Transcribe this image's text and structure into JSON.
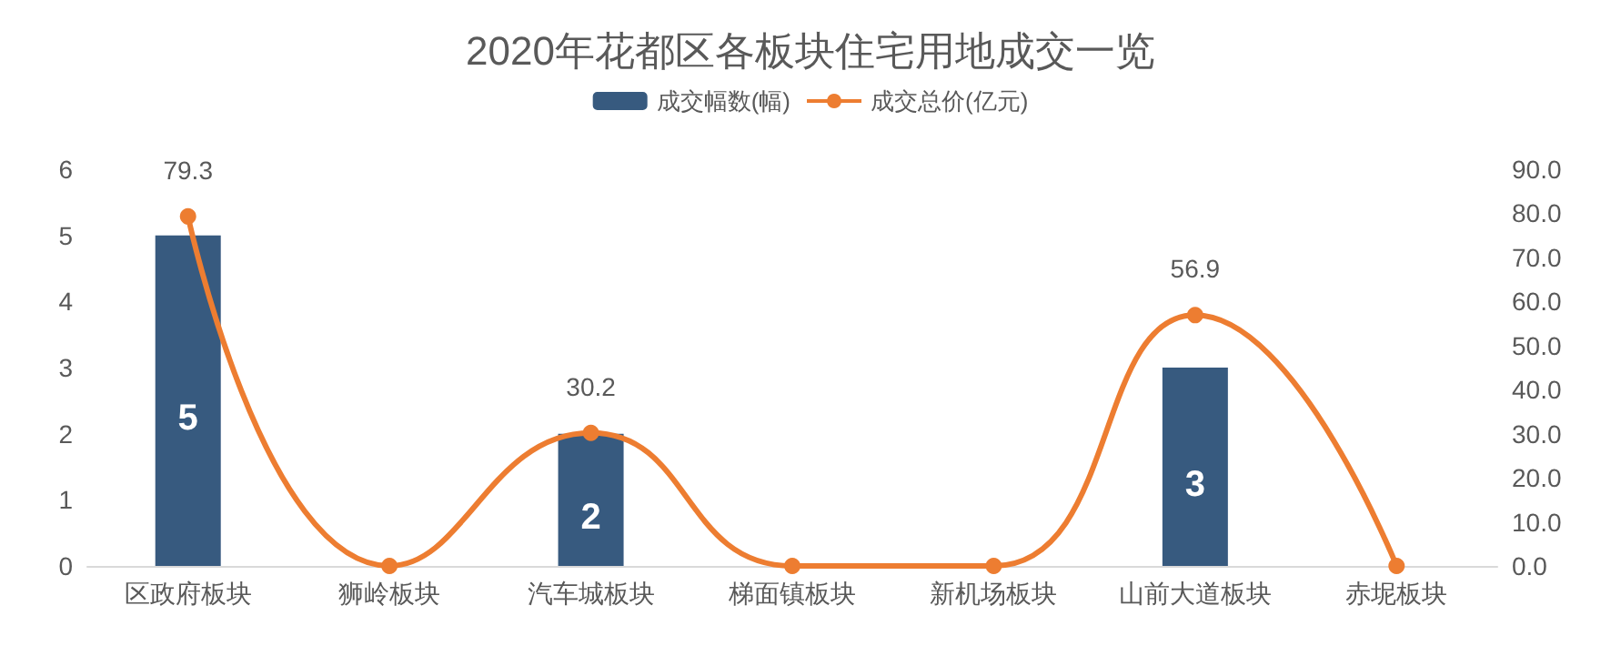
{
  "chart_data": {
    "type": "bar",
    "title": "2020年花都区各板块住宅用地成交一览",
    "categories": [
      "区政府板块",
      "狮岭板块",
      "汽车城板块",
      "梯面镇板块",
      "新机场板块",
      "山前大道板块",
      "赤坭板块"
    ],
    "series": [
      {
        "name": "成交幅数(幅)",
        "color": "#375a7f",
        "values": [
          5,
          0,
          2,
          0,
          0,
          3,
          0
        ],
        "value_labels": [
          "5",
          null,
          "2",
          null,
          null,
          "3",
          null
        ]
      },
      {
        "name": "成交总价(亿元)",
        "type": "line",
        "axis": "y2",
        "color": "#ed7d31",
        "marker": "circle",
        "line_style": "solid",
        "values": [
          79.3,
          0,
          30.2,
          0,
          0,
          56.9,
          0
        ],
        "value_labels": [
          "79.3",
          null,
          "30.2",
          null,
          null,
          "56.9",
          null
        ]
      }
    ],
    "ylim": [
      0,
      6
    ],
    "yticks": [
      0,
      1,
      2,
      3,
      4,
      5,
      6
    ],
    "y2lim": [
      0,
      90
    ],
    "y2ticks": [
      {
        "value": 0,
        "label": "0.0"
      },
      {
        "value": 10,
        "label": "10.0"
      },
      {
        "value": 20,
        "label": "20.0"
      },
      {
        "value": 30,
        "label": "30.0"
      },
      {
        "value": 40,
        "label": "40.0"
      },
      {
        "value": 50,
        "label": "50.0"
      },
      {
        "value": 60,
        "label": "60.0"
      },
      {
        "value": 70,
        "label": "70.0"
      },
      {
        "value": 80,
        "label": "80.0"
      },
      {
        "value": 90,
        "label": "90.0"
      }
    ],
    "grid": false,
    "legend": "top"
  }
}
